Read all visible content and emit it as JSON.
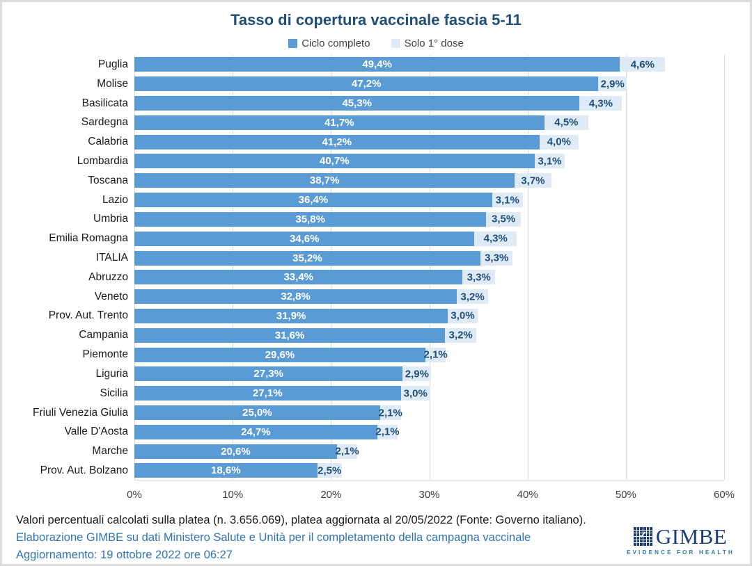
{
  "title": "Tasso di copertura vaccinale fascia 5-11",
  "legend": {
    "items": [
      {
        "label": "Ciclo completo",
        "color": "#5B9BD5"
      },
      {
        "label": "Solo 1° dose",
        "color": "#DEEBF7"
      }
    ]
  },
  "colors": {
    "complete_bar": "#5B9BD5",
    "first_dose_bar": "#DEEBF7",
    "title_text": "#1F4E79",
    "value_on_complete": "#FFFFFF",
    "value_on_dose": "#1F4E79",
    "gridline": "#D9D9D9",
    "footer_blue": "#2E74B5",
    "logo_navy": "#1B3C7B"
  },
  "chart_data": {
    "type": "bar",
    "orientation": "horizontal",
    "stacked": true,
    "title": "Tasso di copertura vaccinale fascia 5-11",
    "categories": [
      "Puglia",
      "Molise",
      "Basilicata",
      "Sardegna",
      "Calabria",
      "Lombardia",
      "Toscana",
      "Lazio",
      "Umbria",
      "Emilia Romagna",
      "ITALIA",
      "Abruzzo",
      "Veneto",
      "Prov. Aut. Trento",
      "Campania",
      "Piemonte",
      "Liguria",
      "Sicilia",
      "Friuli Venezia Giulia",
      "Valle D'Aosta",
      "Marche",
      "Prov. Aut. Bolzano"
    ],
    "series": [
      {
        "name": "Ciclo completo",
        "values": [
          49.4,
          47.2,
          45.3,
          41.7,
          41.2,
          40.7,
          38.7,
          36.4,
          35.8,
          34.6,
          35.2,
          33.4,
          32.8,
          31.9,
          31.6,
          29.6,
          27.3,
          27.1,
          25.0,
          24.7,
          20.6,
          18.6
        ]
      },
      {
        "name": "Solo 1° dose",
        "values": [
          4.6,
          2.9,
          4.3,
          4.5,
          4.0,
          3.1,
          3.7,
          3.1,
          3.5,
          4.3,
          3.3,
          3.3,
          3.2,
          3.0,
          3.2,
          2.1,
          2.9,
          3.0,
          2.1,
          2.1,
          2.1,
          2.5
        ]
      }
    ],
    "value_label_format": "italian-decimal-percent",
    "x_ticks": [
      "0%",
      "10%",
      "20%",
      "30%",
      "40%",
      "50%",
      "60%"
    ],
    "xlim": [
      0,
      60
    ],
    "grid": true,
    "legend_position": "top"
  },
  "footer": {
    "line1": "Valori percentuali calcolati sulla platea (n. 3.656.069), platea aggiornata al 20/05/2022 (Fonte: Governo italiano).",
    "line2": "Elaborazione GIMBE su dati Ministero Salute e Unità per il completamento della campagna vaccinale",
    "line3": "Aggiornamento: 19 ottobre 2022 ore 06:27"
  },
  "logo": {
    "wordmark": "GIMBE",
    "tagline": "EVIDENCE FOR HEALTH",
    "check_glyph": "✓"
  }
}
